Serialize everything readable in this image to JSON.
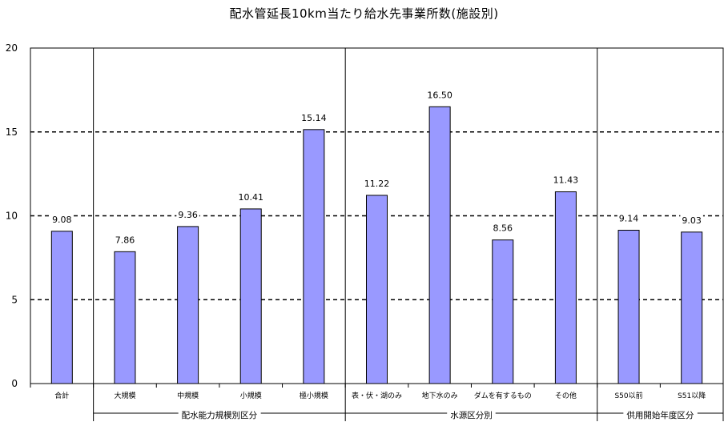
{
  "chart_data": {
    "type": "bar",
    "title": "配水管延長10km当たり給水先事業所数(施設別)",
    "categories": [
      "合計",
      "大規模",
      "中規模",
      "小規模",
      "極小規模",
      "表・伏・湖のみ",
      "地下水のみ",
      "ダムを有するもの",
      "その他",
      "S50以前",
      "S51以降"
    ],
    "values": [
      9.08,
      7.86,
      9.36,
      10.41,
      15.14,
      11.22,
      16.5,
      8.56,
      11.43,
      9.14,
      9.03
    ],
    "value_labels": [
      "9.08",
      "7.86",
      "9.36",
      "10.41",
      "15.14",
      "11.22",
      "16.50",
      "8.56",
      "11.43",
      "9.14",
      "9.03"
    ],
    "groups": [
      {
        "label": "配水能力規模別区分",
        "start": 1,
        "end": 4
      },
      {
        "label": "水源区分別",
        "start": 5,
        "end": 8
      },
      {
        "label": "供用開始年度区分",
        "start": 9,
        "end": 10
      }
    ],
    "ylim": [
      0,
      20
    ],
    "yticks": [
      0,
      5,
      10,
      15,
      20
    ],
    "bar_color": "#9999ff",
    "grid": "dashed horizontal",
    "xlabel": "",
    "ylabel": ""
  }
}
